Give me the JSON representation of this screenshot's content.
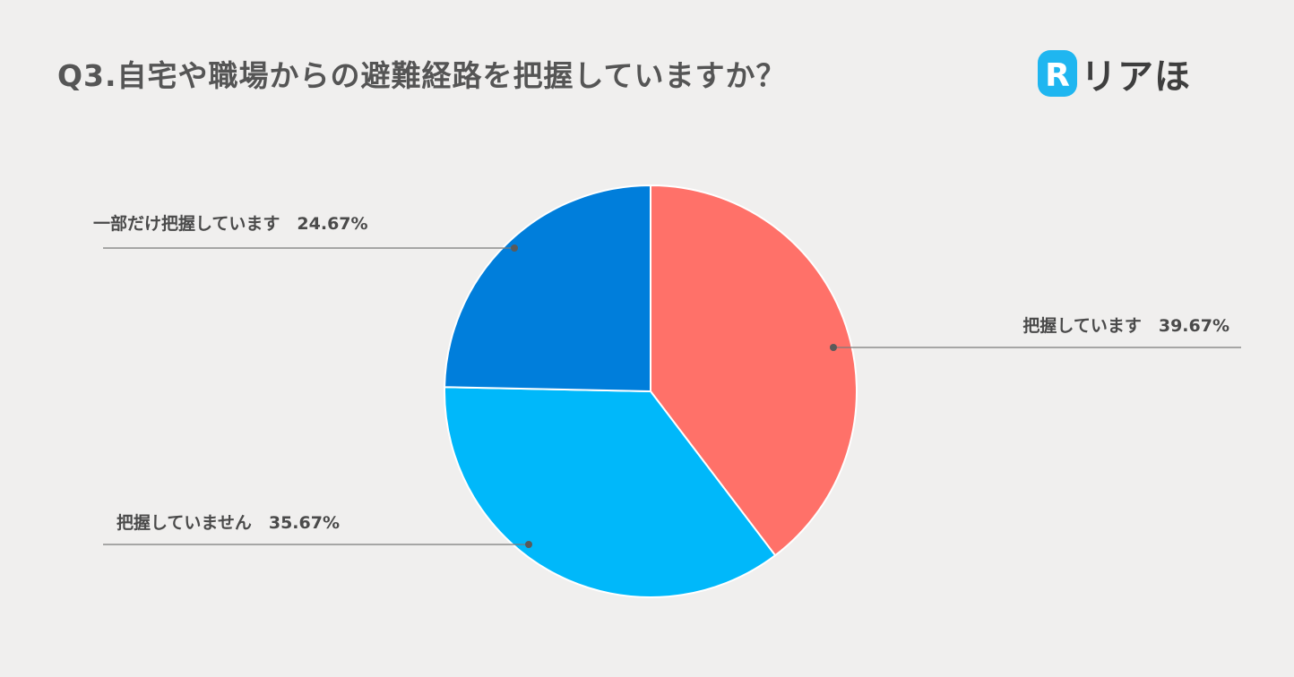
{
  "title": "Q3.自宅や職場からの避難経路を把握していますか？",
  "logo": {
    "brand_text": "リアほ",
    "mark_letter": "R",
    "accent_color": "#1fb6f0"
  },
  "chart_data": {
    "type": "pie",
    "title": "Q3.自宅や職場からの避難経路を把握していますか？",
    "start_angle_deg": 0,
    "direction": "clockwise",
    "slices": [
      {
        "label": "把握しています",
        "value": 39.67,
        "value_label": "39.67%",
        "color": "#ff7169"
      },
      {
        "label": "把握していません",
        "value": 35.67,
        "value_label": "35.67%",
        "color": "#00b8fa"
      },
      {
        "label": "一部だけ把握しています",
        "value": 24.67,
        "value_label": "24.67%",
        "color": "#007edb"
      }
    ]
  }
}
